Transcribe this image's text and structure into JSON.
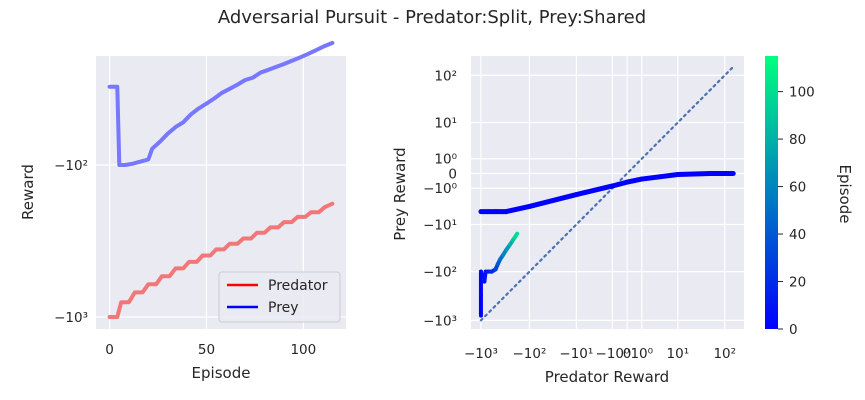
{
  "title": "Adversarial Pursuit - Predator:Split, Prey:Shared",
  "chart_data": [
    {
      "type": "line",
      "xlabel": "Episode",
      "ylabel": "Reward",
      "yscale": "symlog",
      "xlim": [
        -7,
        122
      ],
      "x_ticks": [
        0,
        50,
        100
      ],
      "y_ticks": [
        -100,
        -1000
      ],
      "y_tick_labels": [
        "−10²",
        "−10³"
      ],
      "grid": true,
      "legend_position": "lower-right",
      "series": [
        {
          "name": "Predator",
          "color": "#f07878",
          "legend_color": "#ff0000",
          "x": [
            0,
            4,
            6,
            10,
            13,
            17,
            20,
            24,
            27,
            31,
            34,
            38,
            41,
            45,
            48,
            52,
            55,
            59,
            62,
            66,
            69,
            73,
            76,
            80,
            83,
            87,
            90,
            94,
            97,
            101,
            104,
            108,
            111,
            115
          ],
          "y": [
            -1000,
            -1000,
            -800,
            -800,
            -690,
            -690,
            -610,
            -610,
            -540,
            -540,
            -480,
            -480,
            -435,
            -435,
            -395,
            -395,
            -360,
            -360,
            -330,
            -330,
            -305,
            -305,
            -280,
            -280,
            -258,
            -258,
            -238,
            -238,
            -220,
            -220,
            -205,
            -205,
            -190,
            -180
          ]
        },
        {
          "name": "Prey",
          "color": "#7777ff",
          "legend_color": "#0000ff",
          "x": [
            0,
            4,
            5,
            8,
            12,
            16,
            20,
            22,
            26,
            30,
            34,
            38,
            42,
            46,
            50,
            54,
            58,
            62,
            66,
            70,
            74,
            78,
            82,
            86,
            90,
            94,
            98,
            102,
            106,
            110,
            115
          ],
          "y": [
            -30,
            -30,
            -100,
            -100,
            -98,
            -95,
            -92,
            -78,
            -70,
            -62,
            -56,
            -52,
            -46,
            -42,
            -39,
            -36,
            -33,
            -31,
            -29,
            -27,
            -26,
            -24,
            -23,
            -22,
            -21,
            -20,
            -19,
            -18,
            -17,
            -16,
            -15
          ]
        }
      ]
    },
    {
      "type": "scatter",
      "xlabel": "Predator Reward",
      "ylabel": "Prey Reward",
      "xscale": "symlog",
      "yscale": "symlog",
      "xlim": [
        -1600,
        250
      ],
      "ylim": [
        -1500,
        250
      ],
      "x_ticks": [
        -1000,
        -100,
        -10,
        -1,
        0,
        1,
        10,
        100
      ],
      "x_tick_labels": [
        "−10³",
        "−10²",
        "−10¹",
        "−10⁰",
        "0",
        "10⁰",
        "10¹",
        "10²"
      ],
      "y_ticks": [
        100,
        10,
        1,
        0,
        -1,
        -10,
        -100,
        -1000
      ],
      "y_tick_labels": [
        "10²",
        "10¹",
        "10⁰",
        "0",
        "−10⁰",
        "−10¹",
        "−10²",
        "−10³"
      ],
      "grid": true,
      "diagonal": {
        "style": "dotted",
        "color": "#4c72b0",
        "from": [
          -1000,
          -1000
        ],
        "to": [
          160,
          160
        ]
      },
      "colormap": {
        "name": "winter",
        "label": "Episode",
        "min": 0,
        "max": 115,
        "ticks": [
          0,
          20,
          40,
          60,
          80,
          100
        ],
        "colors": [
          "#0000ff",
          "#00ff80"
        ]
      },
      "series": [
        {
          "name": "thick",
          "x": [
            -1000,
            -500,
            -300,
            -100,
            -10,
            -1,
            0,
            1,
            10,
            50,
            100,
            150
          ],
          "y": [
            -5,
            -5,
            -5,
            -3.7,
            -1.7,
            -0.8,
            -0.5,
            -0.3,
            -0.05,
            0,
            0,
            0
          ],
          "episode": [
            0,
            0,
            0,
            0,
            0,
            0,
            0,
            0,
            0,
            0,
            0,
            0
          ]
        },
        {
          "name": "thin",
          "x": [
            -1000,
            -1000,
            -1000,
            -900,
            -850,
            -800,
            -700,
            -600,
            -500,
            -450,
            -400,
            -350,
            -300,
            -250,
            -220,
            -200,
            -180
          ],
          "y": [
            -800,
            -300,
            -100,
            -150,
            -160,
            -100,
            -100,
            -100,
            -90,
            -70,
            -55,
            -45,
            -35,
            -27,
            -22,
            -19,
            -16
          ],
          "episode": [
            0,
            2,
            4,
            6,
            8,
            10,
            15,
            20,
            30,
            40,
            50,
            60,
            70,
            80,
            90,
            100,
            115
          ]
        }
      ]
    }
  ]
}
